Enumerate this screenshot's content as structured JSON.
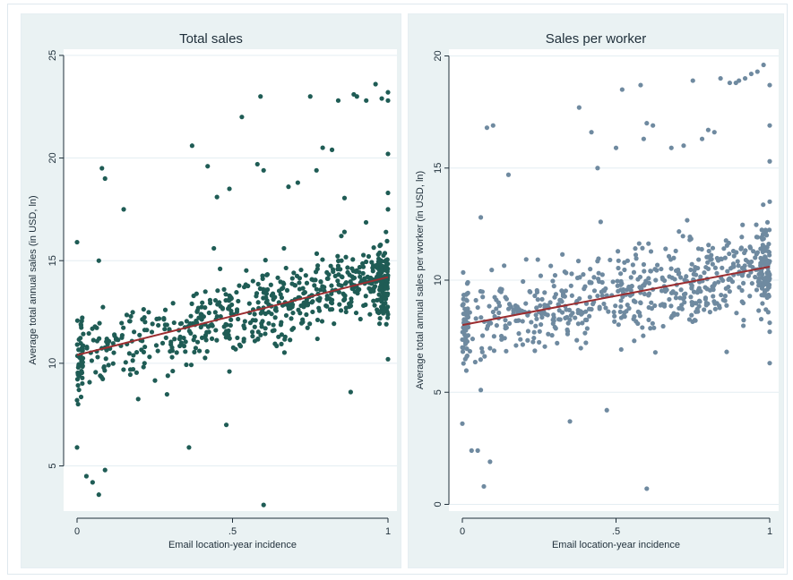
{
  "chart_data": [
    {
      "type": "scatter",
      "title": "Total sales",
      "xlabel": "Email location-year incidence",
      "ylabel": "Average total annual sales (in USD, ln)",
      "xlim": [
        0,
        1
      ],
      "ylim": [
        2.8,
        25.3
      ],
      "xticks": [
        0,
        0.5,
        1
      ],
      "xtick_labels": [
        "0",
        ".5",
        "1"
      ],
      "yticks": [
        5,
        10,
        15,
        20,
        25
      ],
      "ytick_labels": [
        "5",
        "10",
        "15",
        "20",
        "25"
      ],
      "grid": true,
      "marker_color": "#1f5c55",
      "fit_line_color": "#9b2d30",
      "fit_line": {
        "x": [
          0,
          1
        ],
        "y": [
          10.4,
          14.2
        ]
      },
      "cloud": {
        "count": 720,
        "seed": 11,
        "intercept": 10.4,
        "slope": 3.8,
        "sd": 0.95
      },
      "outliers": {
        "x": [
          0.0,
          0.0,
          0.0,
          0.03,
          0.05,
          0.07,
          0.09,
          0.08,
          0.09,
          0.07,
          0.15,
          0.36,
          0.37,
          0.42,
          0.45,
          0.46,
          0.48,
          0.49,
          0.49,
          0.53,
          0.58,
          0.59,
          0.6,
          0.6,
          0.61,
          0.68,
          0.71,
          0.75,
          0.77,
          0.79,
          0.82,
          0.84,
          0.85,
          0.86,
          0.88,
          0.89,
          0.9,
          0.93,
          0.96,
          0.98,
          1.0,
          1.0,
          1.0,
          1.0,
          1.0,
          1.0,
          0.44
        ],
        "y": [
          15.9,
          5.9,
          8.2,
          4.5,
          4.2,
          3.6,
          4.8,
          19.5,
          19.0,
          15.0,
          17.5,
          5.9,
          20.6,
          19.6,
          18.1,
          14.6,
          7.0,
          9.6,
          18.5,
          22.0,
          19.7,
          23.0,
          19.4,
          3.1,
          14.3,
          18.6,
          18.8,
          23.0,
          19.4,
          20.5,
          20.4,
          22.8,
          16.2,
          16.4,
          8.6,
          23.1,
          23.0,
          22.8,
          23.6,
          22.9,
          23.2,
          22.8,
          20.2,
          18.3,
          17.5,
          10.2,
          15.6
        ]
      }
    },
    {
      "type": "scatter",
      "title": "Sales per worker",
      "xlabel": "Email location-year incidence",
      "ylabel": "Average total annual sales per worker (in USD, ln)",
      "xlim": [
        0,
        1
      ],
      "ylim": [
        -0.3,
        20.3
      ],
      "xticks": [
        0,
        0.5,
        1
      ],
      "xtick_labels": [
        "0",
        ".5",
        "1"
      ],
      "yticks": [
        0,
        5,
        10,
        15,
        20
      ],
      "ytick_labels": [
        "0",
        "5",
        "10",
        "15",
        "20"
      ],
      "grid": true,
      "marker_color": "#6f8aa0",
      "fit_line_color": "#9b2d30",
      "fit_line": {
        "x": [
          0,
          1
        ],
        "y": [
          8.0,
          10.6
        ]
      },
      "cloud": {
        "count": 720,
        "seed": 23,
        "intercept": 8.0,
        "slope": 2.6,
        "sd": 0.9
      },
      "outliers": {
        "x": [
          0.0,
          0.03,
          0.05,
          0.06,
          0.07,
          0.09,
          0.08,
          0.1,
          0.06,
          0.15,
          0.35,
          0.38,
          0.42,
          0.44,
          0.45,
          0.47,
          0.5,
          0.52,
          0.58,
          0.59,
          0.6,
          0.6,
          0.62,
          0.68,
          0.72,
          0.75,
          0.78,
          0.8,
          0.82,
          0.84,
          0.87,
          0.89,
          0.9,
          0.92,
          0.94,
          0.96,
          0.98,
          1.0,
          1.0,
          1.0,
          1.0,
          1.0,
          1.0,
          1.0,
          0.86
        ],
        "y": [
          3.6,
          2.4,
          2.4,
          5.1,
          0.8,
          1.9,
          16.8,
          16.9,
          12.8,
          14.7,
          3.7,
          17.7,
          16.6,
          15.0,
          12.6,
          4.2,
          15.9,
          18.5,
          18.7,
          16.3,
          17.0,
          0.7,
          16.9,
          15.9,
          16.0,
          18.9,
          16.3,
          16.7,
          16.6,
          19.0,
          18.8,
          18.8,
          18.9,
          19.0,
          19.2,
          19.3,
          19.6,
          18.7,
          16.9,
          15.3,
          13.5,
          7.7,
          6.3,
          8.1,
          6.8
        ]
      }
    }
  ]
}
